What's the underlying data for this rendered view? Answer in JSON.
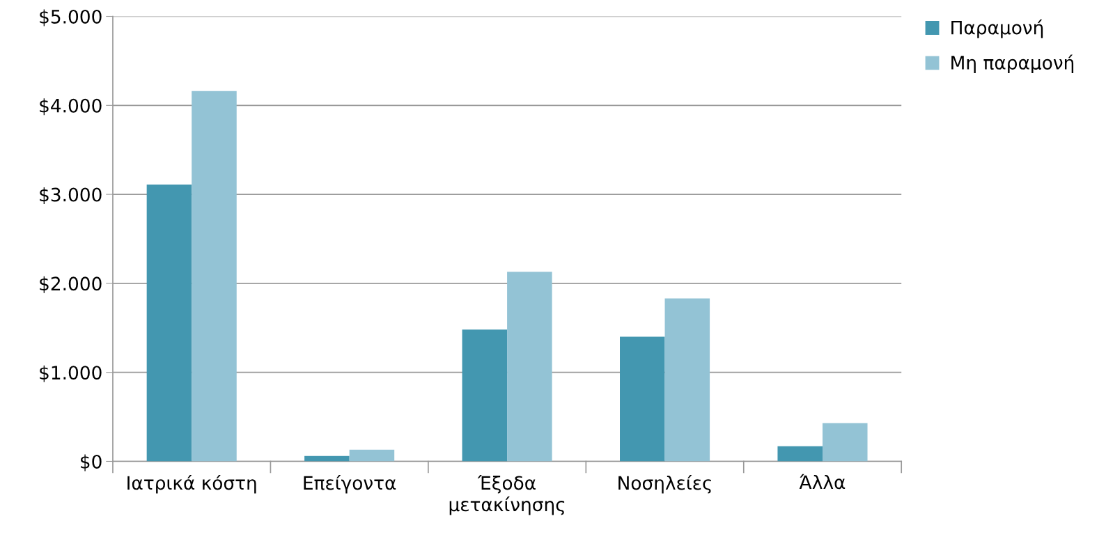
{
  "chart_data": {
    "type": "bar",
    "categories": [
      "Ιατρικά κόστη",
      "Επείγοντα",
      "Έξοδα\nμετακίνησης",
      "Νοσηλείες",
      "Άλλα"
    ],
    "series": [
      {
        "name": "Παραμονή",
        "color": "#4397b0",
        "values": [
          3110,
          60,
          1480,
          1400,
          170
        ]
      },
      {
        "name": "Μη παραμονή",
        "color": "#93c3d5",
        "values": [
          4160,
          130,
          2130,
          1830,
          430
        ]
      }
    ],
    "ylim": [
      0,
      5000
    ],
    "yticks": [
      {
        "value": 0,
        "label": "$0"
      },
      {
        "value": 1000,
        "label": "$1.000"
      },
      {
        "value": 2000,
        "label": "$2.000"
      },
      {
        "value": 3000,
        "label": "$3.000"
      },
      {
        "value": 4000,
        "label": "$4.000"
      },
      {
        "value": 5000,
        "label": "$5.000"
      }
    ],
    "grid": "y",
    "legend": "top right"
  }
}
